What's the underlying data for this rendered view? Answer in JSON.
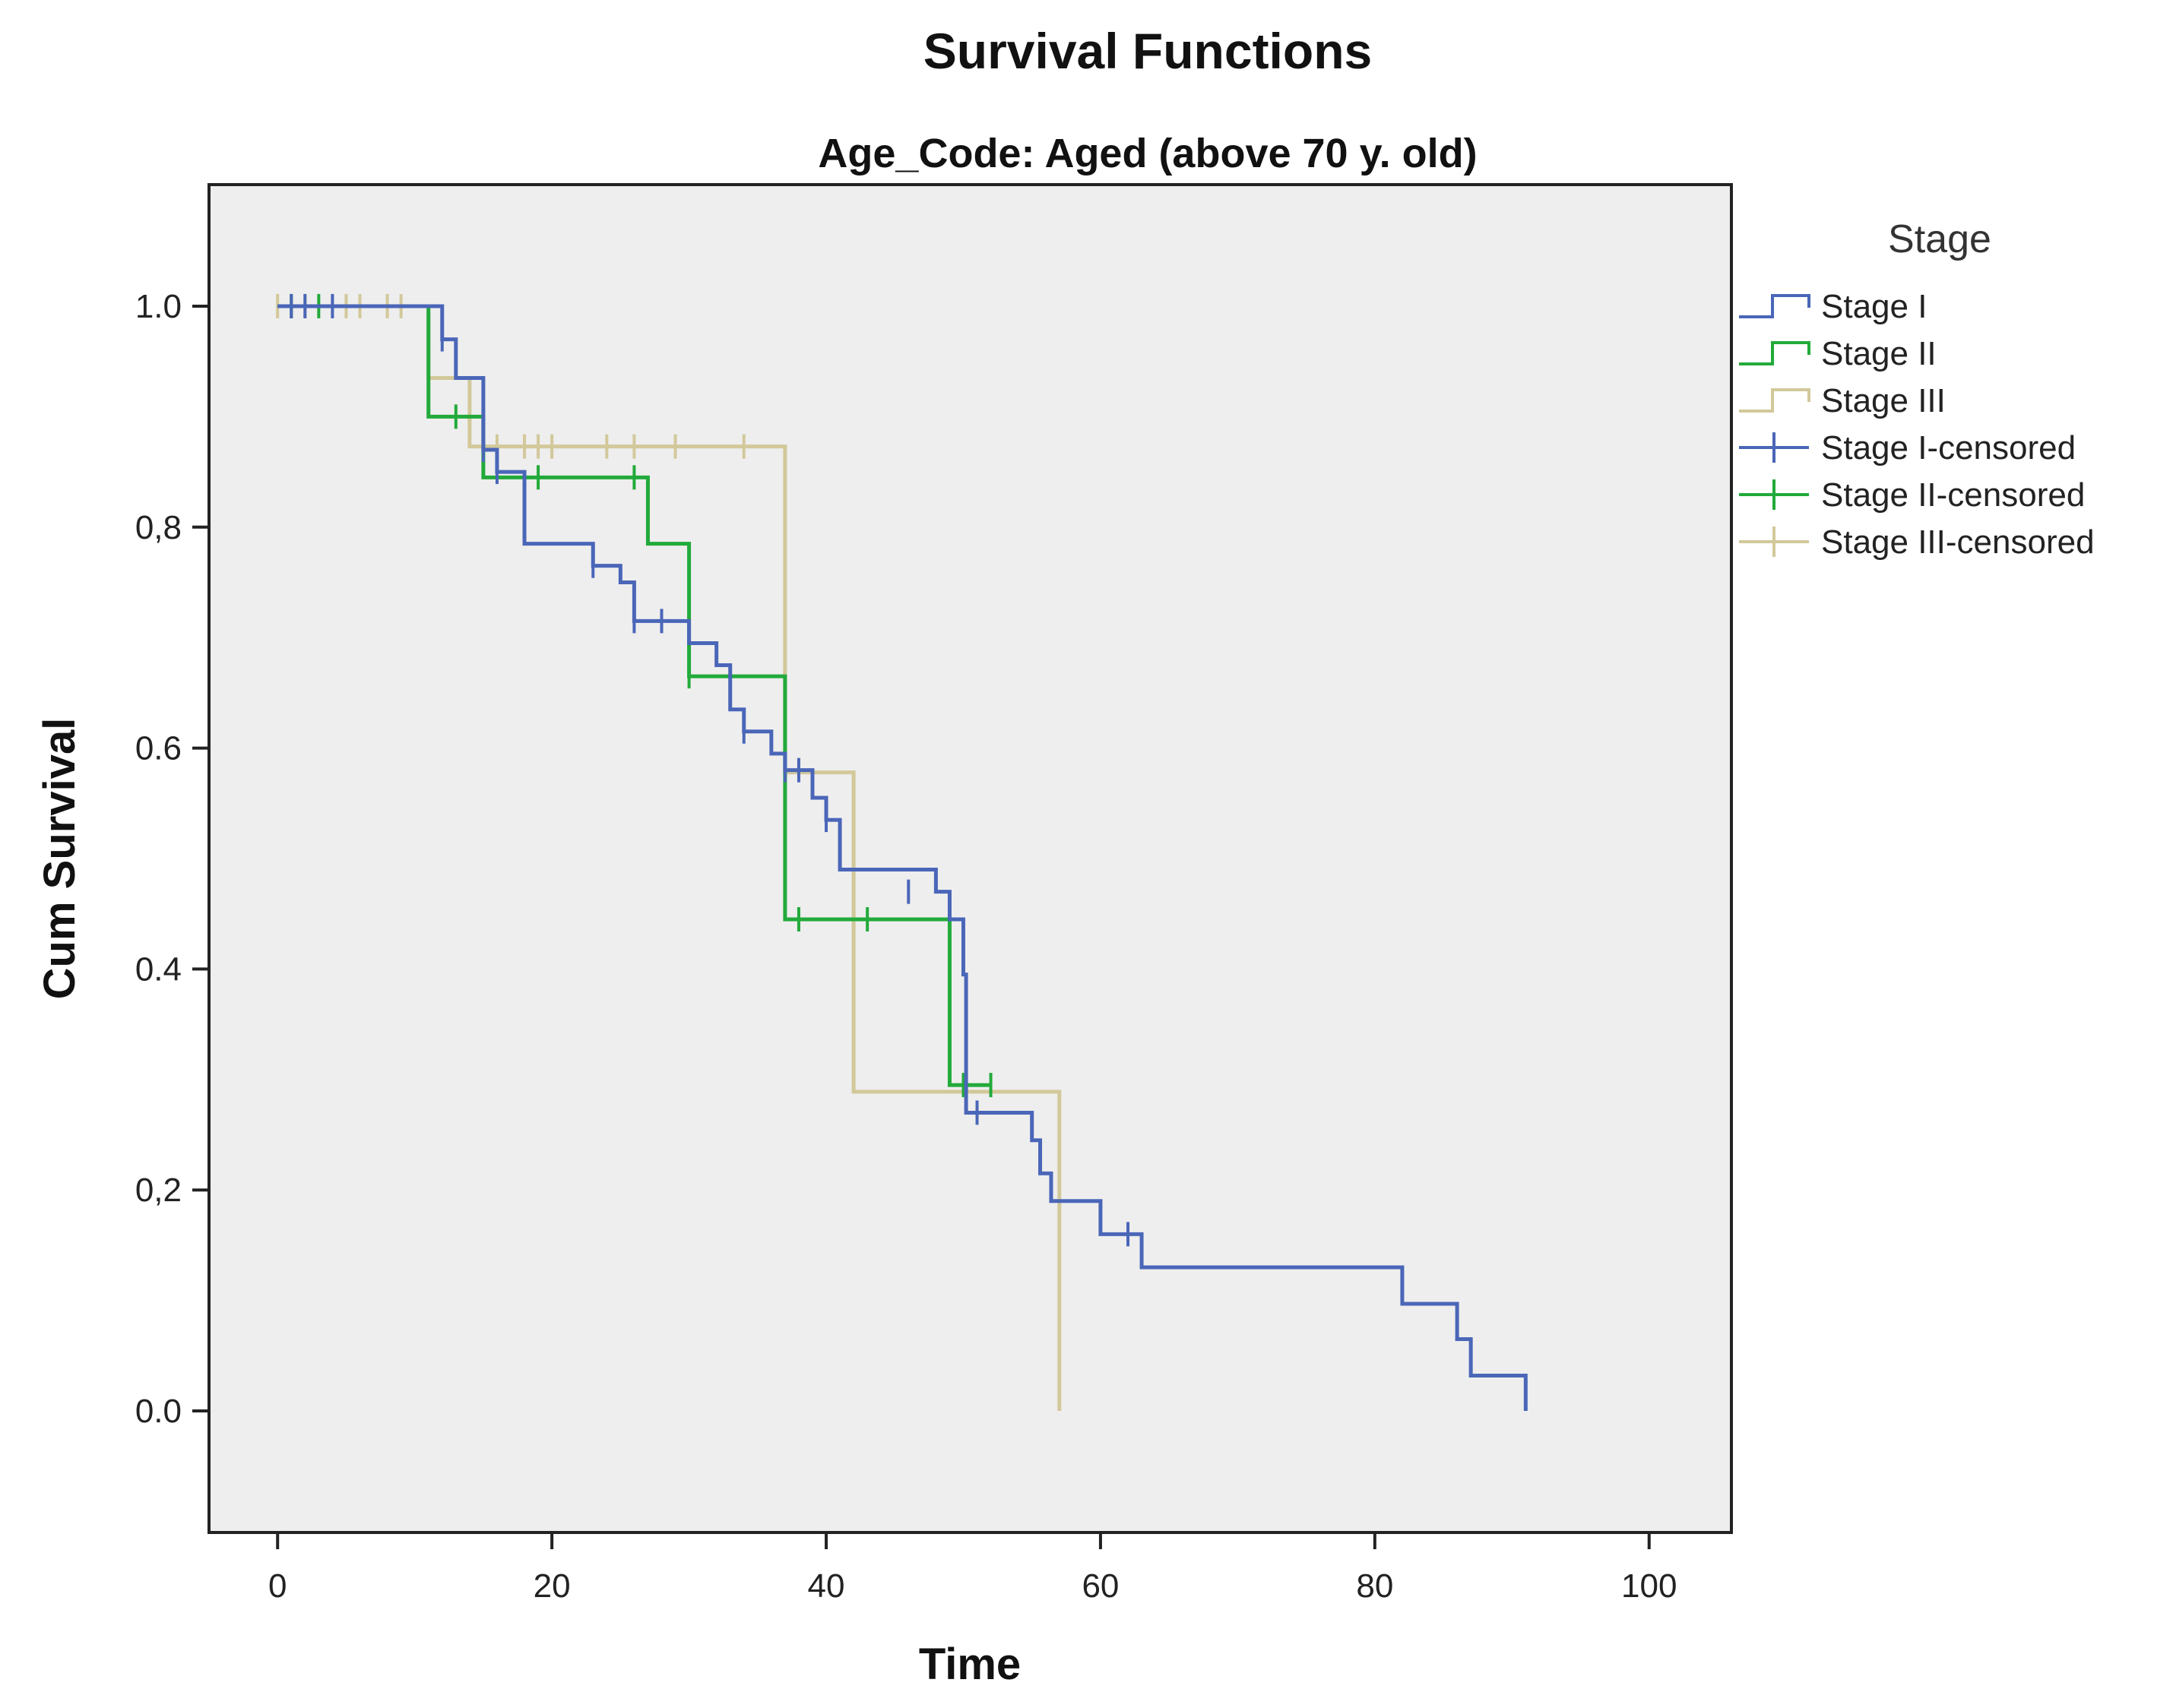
{
  "chart_data": {
    "type": "line",
    "title": "Survival Functions",
    "subtitle": "Age_Code: Aged (above 70 y. old)",
    "xlabel": "Time",
    "ylabel": "Cum Survival",
    "xlim": [
      -5,
      106
    ],
    "ylim": [
      -0.11,
      1.11
    ],
    "x_ticks": [
      0,
      20,
      40,
      60,
      80,
      100
    ],
    "x_tick_labels": [
      "0",
      "20",
      "40",
      "60",
      "80",
      "100"
    ],
    "y_ticks": [
      0.0,
      0.2,
      0.4,
      0.6,
      0.8,
      1.0
    ],
    "y_tick_labels": [
      "0.0",
      "0,2",
      "0.4",
      "0.6",
      "0,8",
      "1.0"
    ],
    "grid": false,
    "background": "#eeeeee",
    "legend_title": "Stage",
    "legend_position": "right",
    "legend": [
      {
        "label": "Stage I",
        "series": "stage1",
        "kind": "line"
      },
      {
        "label": "Stage II",
        "series": "stage2",
        "kind": "line"
      },
      {
        "label": "Stage III",
        "series": "stage3",
        "kind": "line"
      },
      {
        "label": "Stage I-censored",
        "series": "stage1",
        "kind": "censor"
      },
      {
        "label": "Stage II-censored",
        "series": "stage2",
        "kind": "censor"
      },
      {
        "label": "Stage III-censored",
        "series": "stage3",
        "kind": "censor"
      }
    ],
    "series": [
      {
        "name": "Stage I",
        "id": "stage1",
        "color": "#4a66b8",
        "draw_order": 3,
        "steps": [
          [
            0,
            1.0
          ],
          [
            12,
            0.97
          ],
          [
            13,
            0.935
          ],
          [
            15,
            0.87
          ],
          [
            16,
            0.85
          ],
          [
            18,
            0.785
          ],
          [
            23,
            0.765
          ],
          [
            25,
            0.75
          ],
          [
            26,
            0.715
          ],
          [
            30,
            0.695
          ],
          [
            32,
            0.675
          ],
          [
            33,
            0.635
          ],
          [
            34,
            0.615
          ],
          [
            36,
            0.595
          ],
          [
            37,
            0.58
          ],
          [
            39,
            0.555
          ],
          [
            40,
            0.535
          ],
          [
            41,
            0.49
          ],
          [
            48,
            0.47
          ],
          [
            49,
            0.445
          ],
          [
            50,
            0.395
          ],
          [
            50.2,
            0.27
          ],
          [
            55,
            0.245
          ],
          [
            55.6,
            0.215
          ],
          [
            56.4,
            0.19
          ],
          [
            60,
            0.16
          ],
          [
            63,
            0.13
          ],
          [
            82,
            0.097
          ],
          [
            86,
            0.065
          ],
          [
            87,
            0.032
          ],
          [
            91,
            0.0
          ]
        ],
        "end_x": 91,
        "censored": [
          [
            1,
            1.0
          ],
          [
            2,
            1.0
          ],
          [
            4,
            1.0
          ],
          [
            12,
            0.97
          ],
          [
            15,
            0.87
          ],
          [
            16,
            0.85
          ],
          [
            23,
            0.765
          ],
          [
            26,
            0.715
          ],
          [
            28,
            0.715
          ],
          [
            34,
            0.615
          ],
          [
            37,
            0.58
          ],
          [
            38,
            0.58
          ],
          [
            40,
            0.535
          ],
          [
            46,
            0.47
          ],
          [
            51,
            0.27
          ],
          [
            62,
            0.16
          ]
        ]
      },
      {
        "name": "Stage II",
        "id": "stage2",
        "color": "#22aa3a",
        "draw_order": 2,
        "steps": [
          [
            0,
            1.0
          ],
          [
            11,
            0.9
          ],
          [
            15,
            0.845
          ],
          [
            27,
            0.785
          ],
          [
            30,
            0.665
          ],
          [
            37,
            0.445
          ],
          [
            49,
            0.295
          ]
        ],
        "end_x": 52,
        "censored": [
          [
            1,
            1.0
          ],
          [
            3,
            1.0
          ],
          [
            13,
            0.9
          ],
          [
            15,
            0.875
          ],
          [
            19,
            0.845
          ],
          [
            26,
            0.845
          ],
          [
            30,
            0.665
          ],
          [
            38,
            0.445
          ],
          [
            43,
            0.445
          ],
          [
            50,
            0.295
          ],
          [
            52,
            0.295
          ]
        ]
      },
      {
        "name": "Stage III",
        "id": "stage3",
        "color": "#d2c89a",
        "draw_order": 1,
        "steps": [
          [
            0,
            1.0
          ],
          [
            11,
            0.935
          ],
          [
            14,
            0.873
          ],
          [
            37,
            0.578
          ],
          [
            42,
            0.289
          ],
          [
            57,
            0.0
          ]
        ],
        "end_x": 57,
        "censored": [
          [
            0,
            1.0
          ],
          [
            1,
            1.0
          ],
          [
            2,
            1.0
          ],
          [
            5,
            1.0
          ],
          [
            6,
            1.0
          ],
          [
            8,
            1.0
          ],
          [
            9,
            1.0
          ],
          [
            16,
            0.873
          ],
          [
            18,
            0.873
          ],
          [
            19,
            0.873
          ],
          [
            20,
            0.873
          ],
          [
            24,
            0.873
          ],
          [
            26,
            0.873
          ],
          [
            29,
            0.873
          ],
          [
            34,
            0.873
          ]
        ]
      }
    ]
  }
}
